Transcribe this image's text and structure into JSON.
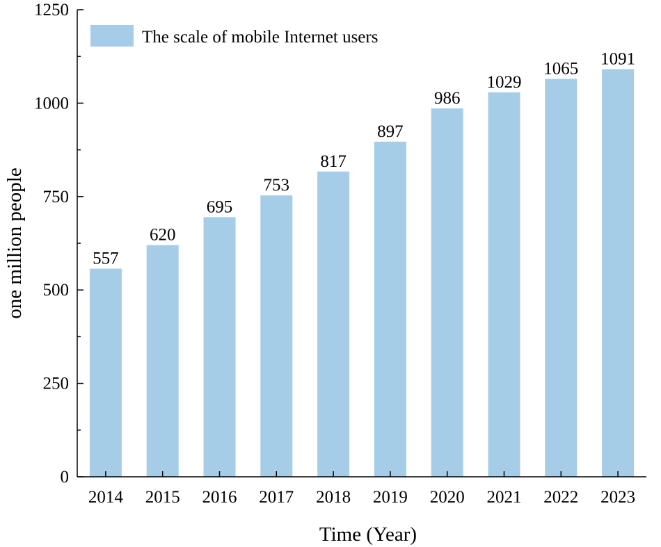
{
  "chart_data": {
    "type": "bar",
    "categories": [
      "2014",
      "2015",
      "2016",
      "2017",
      "2018",
      "2019",
      "2020",
      "2021",
      "2022",
      "2023"
    ],
    "series": [
      {
        "name": "The scale of mobile Internet users",
        "values": [
          557,
          620,
          695,
          753,
          817,
          897,
          986,
          1029,
          1065,
          1091
        ]
      }
    ],
    "xlabel": "Time (Year)",
    "ylabel": "one million people",
    "ylim": [
      0,
      1250
    ],
    "yticks": [
      0,
      250,
      500,
      750,
      1000,
      1250
    ],
    "grid": false,
    "legend_position": "top-left",
    "data_labels": true,
    "bar_color": "#a5cde8"
  }
}
